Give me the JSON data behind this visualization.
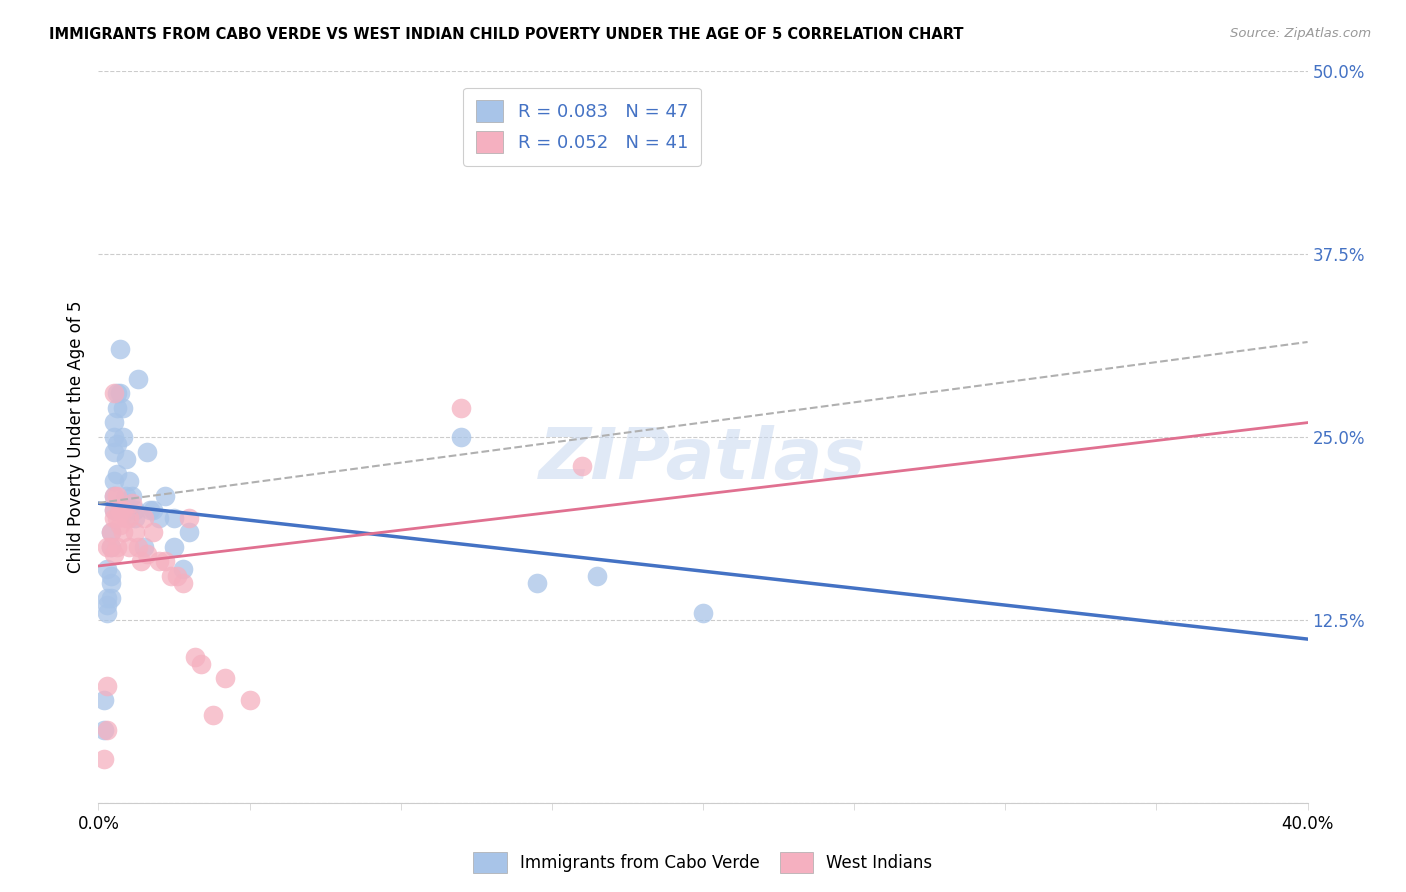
{
  "title": "IMMIGRANTS FROM CABO VERDE VS WEST INDIAN CHILD POVERTY UNDER THE AGE OF 5 CORRELATION CHART",
  "source": "Source: ZipAtlas.com",
  "ylabel": "Child Poverty Under the Age of 5",
  "xlim": [
    0,
    0.4
  ],
  "ylim": [
    0,
    0.5
  ],
  "xticks": [
    0.0,
    0.05,
    0.1,
    0.15,
    0.2,
    0.25,
    0.3,
    0.35,
    0.4
  ],
  "xticklabels": [
    "0.0%",
    "",
    "",
    "",
    "",
    "",
    "",
    "",
    "40.0%"
  ],
  "yticks": [
    0.0,
    0.125,
    0.25,
    0.375,
    0.5
  ],
  "yticklabels": [
    "",
    "12.5%",
    "25.0%",
    "37.5%",
    "50.0%"
  ],
  "blue_color": "#a8c4e8",
  "pink_color": "#f5b0c0",
  "blue_line_color": "#4472c4",
  "pink_line_color": "#e07090",
  "dashed_line_color": "#b0b0b0",
  "legend_R_blue": "0.083",
  "legend_N_blue": "47",
  "legend_R_pink": "0.052",
  "legend_N_pink": "41",
  "cabo_verde_x": [
    0.002,
    0.002,
    0.003,
    0.003,
    0.003,
    0.003,
    0.004,
    0.004,
    0.004,
    0.004,
    0.004,
    0.005,
    0.005,
    0.005,
    0.005,
    0.005,
    0.005,
    0.006,
    0.006,
    0.006,
    0.006,
    0.007,
    0.007,
    0.008,
    0.008,
    0.009,
    0.009,
    0.01,
    0.01,
    0.011,
    0.012,
    0.012,
    0.013,
    0.015,
    0.016,
    0.017,
    0.018,
    0.02,
    0.022,
    0.025,
    0.025,
    0.028,
    0.03,
    0.12,
    0.145,
    0.165,
    0.2
  ],
  "cabo_verde_y": [
    0.05,
    0.07,
    0.13,
    0.135,
    0.14,
    0.16,
    0.14,
    0.15,
    0.155,
    0.175,
    0.185,
    0.2,
    0.21,
    0.22,
    0.24,
    0.25,
    0.26,
    0.225,
    0.245,
    0.27,
    0.28,
    0.28,
    0.31,
    0.25,
    0.27,
    0.21,
    0.235,
    0.2,
    0.22,
    0.21,
    0.2,
    0.195,
    0.29,
    0.175,
    0.24,
    0.2,
    0.2,
    0.195,
    0.21,
    0.195,
    0.175,
    0.16,
    0.185,
    0.25,
    0.15,
    0.155,
    0.13
  ],
  "west_indian_x": [
    0.002,
    0.003,
    0.003,
    0.003,
    0.004,
    0.004,
    0.005,
    0.005,
    0.005,
    0.005,
    0.005,
    0.006,
    0.006,
    0.006,
    0.007,
    0.007,
    0.008,
    0.008,
    0.009,
    0.01,
    0.01,
    0.011,
    0.012,
    0.013,
    0.014,
    0.015,
    0.016,
    0.018,
    0.02,
    0.022,
    0.024,
    0.026,
    0.028,
    0.03,
    0.032,
    0.034,
    0.038,
    0.042,
    0.05,
    0.12,
    0.16
  ],
  "west_indian_y": [
    0.03,
    0.05,
    0.08,
    0.175,
    0.175,
    0.185,
    0.17,
    0.195,
    0.2,
    0.21,
    0.28,
    0.175,
    0.195,
    0.21,
    0.19,
    0.2,
    0.185,
    0.2,
    0.195,
    0.175,
    0.195,
    0.205,
    0.185,
    0.175,
    0.165,
    0.195,
    0.17,
    0.185,
    0.165,
    0.165,
    0.155,
    0.155,
    0.15,
    0.195,
    0.1,
    0.095,
    0.06,
    0.085,
    0.07,
    0.27,
    0.23
  ],
  "watermark": "ZIPatlas",
  "figsize": [
    14.06,
    8.92
  ],
  "dpi": 100
}
